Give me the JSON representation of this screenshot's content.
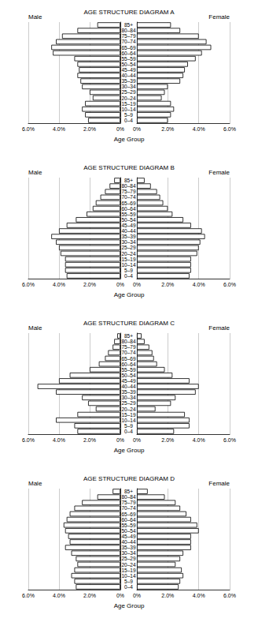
{
  "chart_data": [
    {
      "type": "bar",
      "title": "AGE STRUCTURE DIAGRAM A",
      "orientation": "horizontal",
      "xlabel": "Age Group",
      "categories": [
        "0–4",
        "5–9",
        "10–14",
        "15–19",
        "20–24",
        "25–29",
        "30–34",
        "35–39",
        "40–44",
        "45–49",
        "50–54",
        "55–59",
        "60–64",
        "65–69",
        "70–74",
        "75–79",
        "80–84",
        "85+"
      ],
      "series": [
        {
          "name": "Male",
          "values": [
            2.1,
            2.3,
            2.5,
            2.3,
            1.8,
            2.0,
            2.5,
            2.6,
            2.8,
            2.7,
            2.8,
            3.0,
            4.4,
            4.5,
            4.2,
            3.8,
            2.8,
            1.5
          ]
        },
        {
          "name": "Female",
          "values": [
            2.0,
            2.2,
            2.4,
            2.2,
            1.6,
            1.8,
            2.0,
            2.8,
            3.0,
            3.1,
            3.3,
            3.8,
            4.2,
            4.8,
            4.5,
            4.0,
            2.8,
            2.2
          ]
        }
      ],
      "color": "#ffffff",
      "xlim": [
        0,
        6
      ],
      "xticks": [
        {
          "value": 0,
          "label": "0%"
        },
        {
          "value": 2,
          "label": "2.0%"
        },
        {
          "value": 4,
          "label": "4.0%"
        },
        {
          "value": 6,
          "label": "6.0%"
        }
      ],
      "grid": true
    },
    {
      "type": "bar",
      "title": "AGE STRUCTURE DIAGRAM B",
      "orientation": "horizontal",
      "xlabel": "Age Group",
      "categories": [
        "0–4",
        "5–9",
        "10–14",
        "15–19",
        "20–24",
        "25–29",
        "30–34",
        "35–39",
        "40–44",
        "45–49",
        "50–54",
        "55–59",
        "60–64",
        "65–69",
        "70–74",
        "75–79",
        "80–84",
        "85+"
      ],
      "series": [
        {
          "name": "Male",
          "values": [
            3.5,
            3.6,
            3.6,
            3.6,
            3.9,
            4.0,
            4.2,
            4.5,
            4.0,
            3.5,
            2.9,
            2.2,
            1.8,
            1.6,
            1.3,
            1.0,
            0.7,
            0.4
          ]
        },
        {
          "name": "Female",
          "values": [
            3.4,
            3.5,
            3.5,
            3.5,
            3.9,
            4.0,
            4.1,
            4.4,
            4.2,
            3.5,
            3.0,
            2.3,
            2.0,
            1.7,
            1.5,
            1.3,
            0.9,
            0.5
          ]
        }
      ],
      "color": "#ffffff",
      "xlim": [
        0,
        6
      ],
      "xticks": [
        {
          "value": 0,
          "label": "0%"
        },
        {
          "value": 2,
          "label": "2.0%"
        },
        {
          "value": 4,
          "label": "4.0%"
        },
        {
          "value": 6,
          "label": "6.0%"
        }
      ],
      "grid": true
    },
    {
      "type": "bar",
      "title": "AGE STRUCTURE DIAGRAM C",
      "orientation": "horizontal",
      "xlabel": "Age Group",
      "categories": [
        "0–4",
        "5–9",
        "10–14",
        "15–19",
        "20–24",
        "25–29",
        "30–34",
        "35–39",
        "40–44",
        "45–49",
        "50–54",
        "55–59",
        "60–64",
        "65–69",
        "70–74",
        "75–79",
        "80–84",
        "85+"
      ],
      "series": [
        {
          "name": "Male",
          "values": [
            2.8,
            3.0,
            4.2,
            2.8,
            1.6,
            2.1,
            2.5,
            4.2,
            5.4,
            4.0,
            3.3,
            2.0,
            1.4,
            1.0,
            0.8,
            0.5,
            0.4,
            0.2
          ]
        },
        {
          "name": "Female",
          "values": [
            2.4,
            3.4,
            3.4,
            3.1,
            1.2,
            2.2,
            2.5,
            3.8,
            4.0,
            3.4,
            2.3,
            1.8,
            1.3,
            1.1,
            1.0,
            0.8,
            0.5,
            0.3
          ]
        }
      ],
      "color": "#ffffff",
      "xlim": [
        0,
        6
      ],
      "xticks": [
        {
          "value": 0,
          "label": "0%"
        },
        {
          "value": 2,
          "label": "2.0%"
        },
        {
          "value": 4,
          "label": "4.0%"
        },
        {
          "value": 6,
          "label": "6.0%"
        }
      ],
      "grid": true
    },
    {
      "type": "bar",
      "title": "AGE STRUCTURE DIAGRAM D",
      "orientation": "horizontal",
      "xlabel": "Age Group",
      "categories": [
        "0–4",
        "5–9",
        "10–14",
        "15–19",
        "20–24",
        "25–29",
        "30–34",
        "35–39",
        "40–44",
        "45–49",
        "50–54",
        "55–59",
        "60–64",
        "65–69",
        "70–74",
        "75–79",
        "80–84",
        "85+"
      ],
      "series": [
        {
          "name": "Male",
          "values": [
            2.9,
            3.0,
            3.2,
            3.0,
            2.8,
            2.9,
            3.2,
            3.6,
            3.3,
            3.4,
            3.6,
            3.7,
            3.5,
            3.3,
            3.0,
            2.5,
            1.5,
            0.5
          ]
        },
        {
          "name": "Female",
          "values": [
            2.7,
            2.8,
            3.0,
            2.9,
            2.5,
            2.8,
            3.0,
            3.5,
            3.5,
            3.5,
            4.0,
            3.9,
            3.5,
            3.2,
            2.8,
            2.5,
            1.8,
            0.7
          ]
        }
      ],
      "color": "#ffffff",
      "xlim": [
        0,
        6
      ],
      "xticks": [
        {
          "value": 0,
          "label": "0%"
        },
        {
          "value": 2,
          "label": "2.0%"
        },
        {
          "value": 4,
          "label": "4.0%"
        },
        {
          "value": 6,
          "label": "6.0%"
        }
      ],
      "grid": true
    }
  ]
}
